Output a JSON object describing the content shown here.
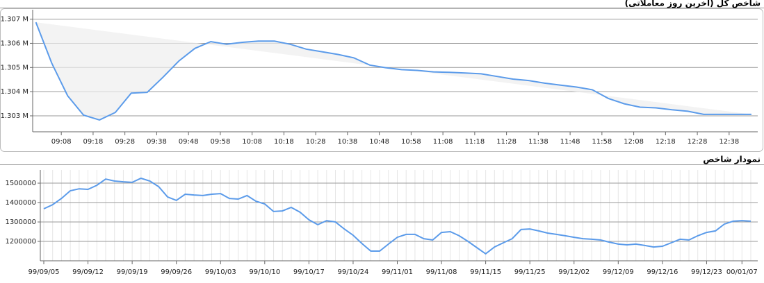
{
  "chart_data": [
    {
      "type": "line",
      "title": "شاخص کل (آخرین روز معاملاتی)",
      "color": "#5b9bea",
      "grid": true,
      "x": [
        "09:00",
        "09:05",
        "09:10",
        "09:15",
        "09:20",
        "09:25",
        "09:30",
        "09:35",
        "09:40",
        "09:45",
        "09:50",
        "09:55",
        "10:00",
        "10:05",
        "10:10",
        "10:15",
        "10:20",
        "10:25",
        "10:30",
        "10:35",
        "10:40",
        "10:45",
        "10:50",
        "10:55",
        "11:00",
        "11:05",
        "11:10",
        "11:15",
        "11:20",
        "11:25",
        "11:30",
        "11:35",
        "11:40",
        "11:45",
        "11:50",
        "11:55",
        "12:00",
        "12:05",
        "12:10",
        "12:15",
        "12:20",
        "12:25",
        "12:30",
        "12:35",
        "12:40",
        "12:45"
      ],
      "values": [
        1306870,
        1305180,
        1303830,
        1303030,
        1302830,
        1303140,
        1303940,
        1303970,
        1304600,
        1305270,
        1305790,
        1306070,
        1305960,
        1306040,
        1306090,
        1306090,
        1305960,
        1305760,
        1305650,
        1305540,
        1305400,
        1305100,
        1304990,
        1304910,
        1304880,
        1304820,
        1304800,
        1304770,
        1304740,
        1304630,
        1304520,
        1304460,
        1304350,
        1304270,
        1304190,
        1304080,
        1303720,
        1303500,
        1303360,
        1303330,
        1303250,
        1303190,
        1303060,
        1303060,
        1303060,
        1303060
      ],
      "xlim": [
        "08:59",
        "12:47"
      ],
      "xticks": [
        "09:08",
        "09:18",
        "09:28",
        "09:38",
        "09:48",
        "09:58",
        "10:08",
        "10:18",
        "10:28",
        "10:38",
        "10:48",
        "10:58",
        "11:08",
        "11:18",
        "11:28",
        "11:38",
        "11:48",
        "11:58",
        "12:08",
        "12:18",
        "12:28",
        "12:38"
      ],
      "ylim": [
        1302340,
        1307390
      ],
      "yticks": [
        {
          "value": 1303000,
          "label": "1.303 M"
        },
        {
          "value": 1304000,
          "label": "1.304 M"
        },
        {
          "value": 1305000,
          "label": "1.305 M"
        },
        {
          "value": 1306000,
          "label": "1.306 M"
        },
        {
          "value": 1307000,
          "label": "1.307 M"
        }
      ]
    },
    {
      "type": "line",
      "title": "نمودار شاخص",
      "color": "#5b9bea",
      "grid": true,
      "categories": [
        "99/09/05",
        null,
        null,
        null,
        null,
        "99/09/12",
        null,
        null,
        null,
        null,
        "99/09/19",
        null,
        null,
        null,
        null,
        "99/09/26",
        null,
        null,
        null,
        null,
        "99/10/03",
        null,
        null,
        null,
        null,
        "99/10/10",
        null,
        null,
        null,
        null,
        "99/10/17",
        null,
        null,
        null,
        null,
        "99/10/24",
        null,
        null,
        null,
        null,
        "99/11/01",
        null,
        null,
        null,
        null,
        "99/11/08",
        null,
        null,
        null,
        null,
        "99/11/15",
        null,
        null,
        null,
        null,
        "99/11/25",
        null,
        null,
        null,
        null,
        "99/12/02",
        null,
        null,
        null,
        null,
        "99/12/09",
        null,
        null,
        null,
        null,
        "99/12/16",
        null,
        null,
        null,
        null,
        "99/12/23",
        null,
        null,
        null,
        "00/01/07",
        null
      ],
      "values": [
        1368000,
        1389000,
        1421000,
        1461000,
        1471000,
        1468000,
        1489000,
        1521000,
        1511000,
        1507000,
        1504000,
        1525000,
        1511000,
        1482000,
        1429000,
        1411000,
        1443000,
        1439000,
        1436000,
        1443000,
        1446000,
        1421000,
        1418000,
        1436000,
        1407000,
        1393000,
        1354000,
        1357000,
        1375000,
        1350000,
        1311000,
        1286000,
        1307000,
        1300000,
        1264000,
        1232000,
        1189000,
        1150000,
        1150000,
        1186000,
        1221000,
        1236000,
        1236000,
        1214000,
        1207000,
        1246000,
        1250000,
        1229000,
        1200000,
        1168000,
        1136000,
        1171000,
        1193000,
        1214000,
        1261000,
        1264000,
        1254000,
        1243000,
        1236000,
        1229000,
        1221000,
        1214000,
        1211000,
        1207000,
        1196000,
        1186000,
        1182000,
        1186000,
        1179000,
        1171000,
        1175000,
        1193000,
        1211000,
        1207000,
        1229000,
        1246000,
        1254000,
        1289000,
        1304000,
        1307000,
        1304000
      ],
      "ylim": [
        1100000,
        1568000
      ],
      "yticks": [
        1200000,
        1300000,
        1400000,
        1500000
      ]
    }
  ]
}
